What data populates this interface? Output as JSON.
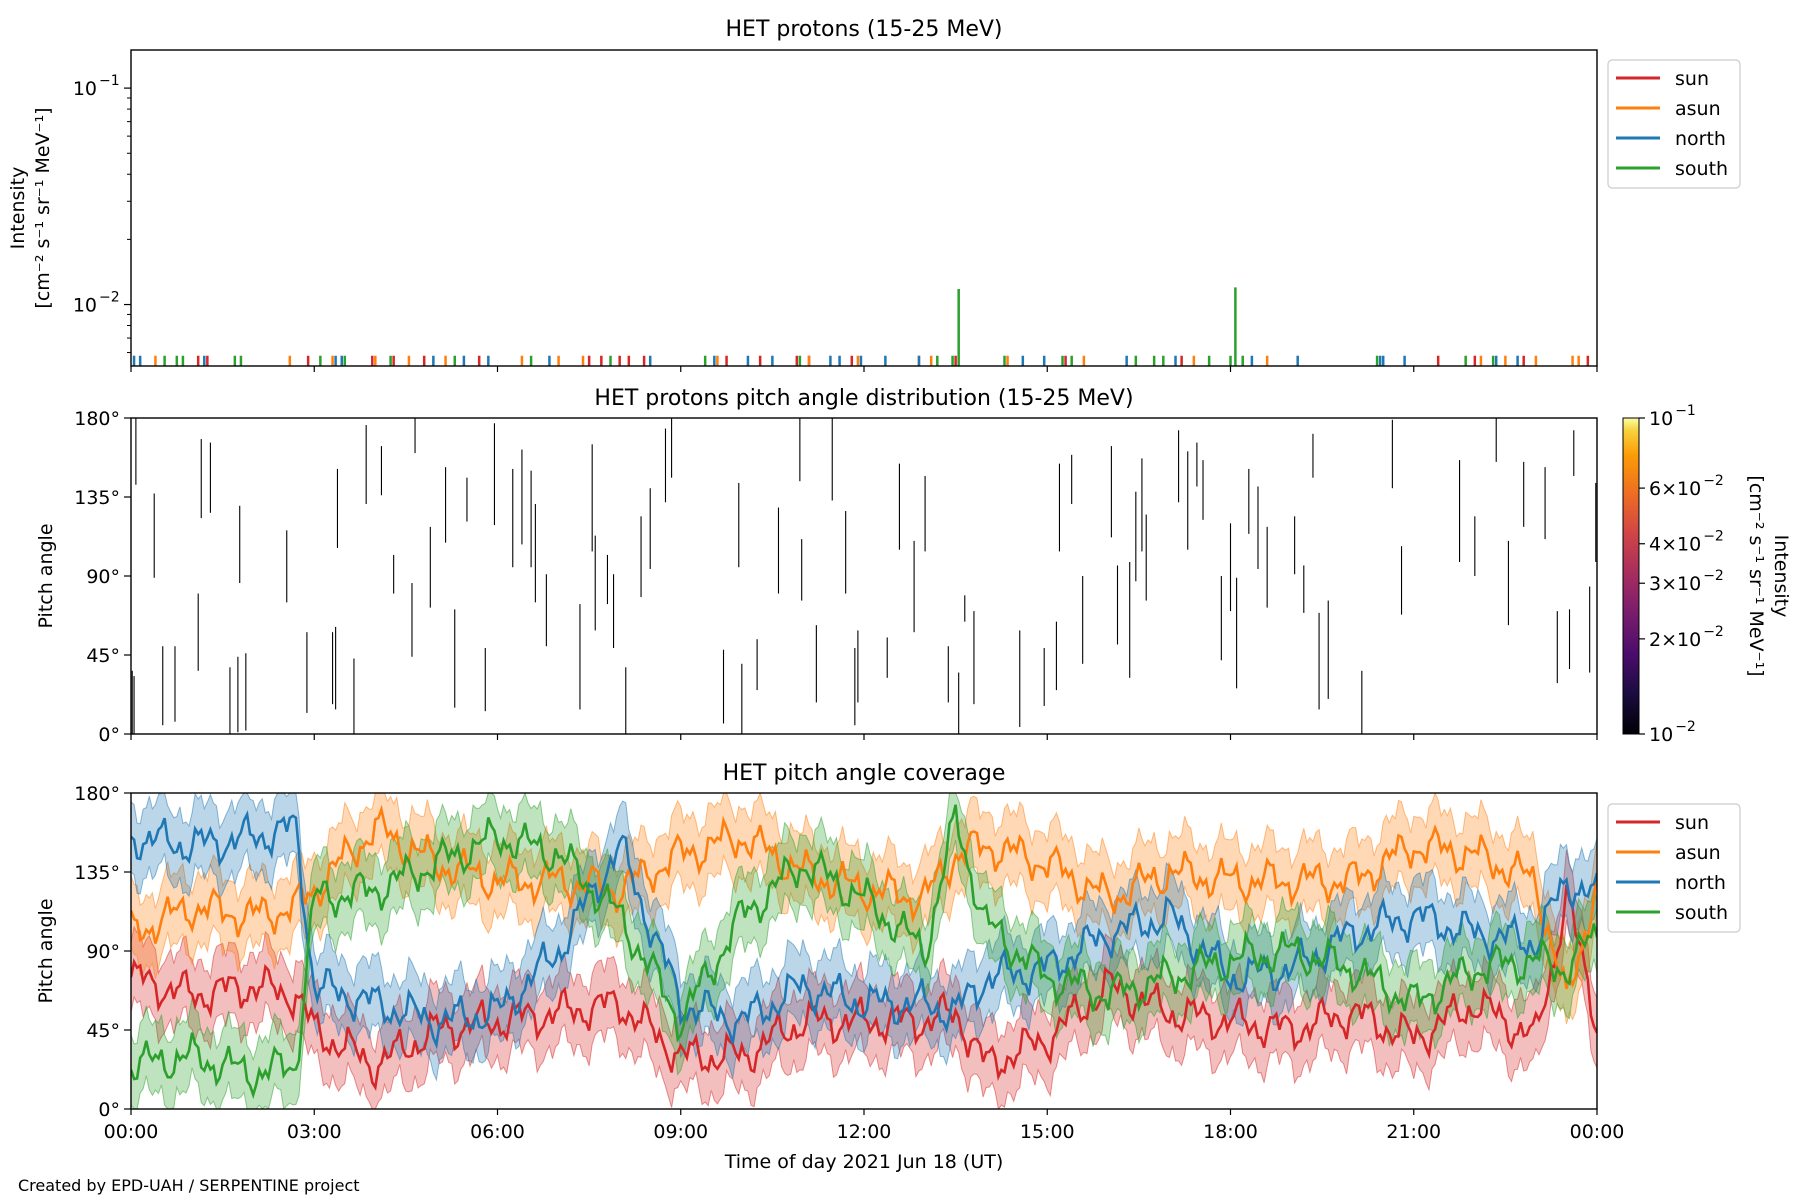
{
  "figure": {
    "credit": "Created by EPD-UAH / SERPENTINE project",
    "xlabel": "Time of day 2021 Jun 18 (UT)",
    "x_ticks": [
      "00:00",
      "03:00",
      "06:00",
      "09:00",
      "12:00",
      "15:00",
      "18:00",
      "21:00",
      "00:00"
    ],
    "x_range_hours": [
      0,
      24
    ]
  },
  "colors": {
    "sun": "#d62728",
    "asun": "#ff7f0e",
    "north": "#1f77b4",
    "south": "#2ca02c"
  },
  "chart_data": [
    {
      "type": "line",
      "title": "HET protons (15-25 MeV)",
      "ylabel_line1": "Intensity",
      "ylabel_line2": "[cm⁻² s⁻¹ sr⁻¹ MeV⁻¹]",
      "yscale": "log",
      "ylim": [
        0.0052,
        0.15
      ],
      "y_ticks": [
        {
          "value": 0.1,
          "base": "10",
          "exp": "−1"
        },
        {
          "value": 0.01,
          "base": "10",
          "exp": "−2"
        }
      ],
      "legend": [
        "sun",
        "asun",
        "north",
        "south"
      ],
      "legend_position": "upper right outside",
      "baseline": 0.0052,
      "series": [
        {
          "name": "sun",
          "spike_value": 0.0058,
          "times": [
            1.1,
            1.25,
            2.9,
            3.95,
            4.3,
            4.8,
            5.7,
            7.5,
            7.7,
            8.0,
            8.15,
            8.4,
            9.75,
            10.3,
            10.9,
            11.1,
            11.8,
            13.5,
            15.3,
            17.2,
            21.4,
            22.0,
            22.8,
            23.85
          ]
        },
        {
          "name": "asun",
          "spike_value": 0.0058,
          "times": [
            0.4,
            2.6,
            3.3,
            4.0,
            4.55,
            5.15,
            6.4,
            7.0,
            7.4,
            9.6,
            11.1,
            11.9,
            12.9,
            13.1,
            14.35,
            15.6,
            17.4,
            18.6,
            22.1,
            22.5,
            23.0,
            23.6,
            23.7
          ]
        },
        {
          "name": "north",
          "spike_value": 0.0058,
          "times": [
            0.05,
            0.15,
            1.2,
            3.35,
            3.45,
            4.95,
            5.45,
            5.85,
            6.85,
            8.5,
            9.55,
            10.1,
            10.5,
            11.45,
            11.6,
            11.95,
            12.35,
            12.9,
            14.6,
            14.95,
            16.3,
            17.1,
            18.35,
            19.1,
            20.45,
            20.5,
            20.85,
            22.35,
            22.7
          ]
        },
        {
          "name": "south",
          "spike_value": 0.0058,
          "times": [
            0.55,
            0.75,
            0.85,
            1.7,
            1.8,
            3.1,
            3.5,
            4.25,
            5.3,
            6.55,
            7.85,
            9.4,
            10.95,
            13.2,
            13.45,
            14.3,
            15.25,
            15.4,
            16.45,
            16.75,
            16.9,
            17.65,
            18.0,
            18.2,
            20.4,
            21.85,
            22.3
          ]
        }
      ],
      "peaks": [
        {
          "series": "south",
          "time": 13.55,
          "value": 0.0118
        },
        {
          "series": "south",
          "time": 18.08,
          "value": 0.012
        }
      ]
    },
    {
      "type": "heatmap",
      "title": "HET protons pitch angle distribution (15-25 MeV)",
      "ylabel": "Pitch angle",
      "ylim": [
        0,
        180
      ],
      "y_ticks": [
        "0°",
        "45°",
        "90°",
        "135°",
        "180°"
      ],
      "y_tick_values": [
        0,
        45,
        90,
        135,
        180
      ],
      "mark_color": "#000000",
      "colorbar": {
        "label_line1": "Intensity",
        "label_line2": "[cm⁻² s⁻¹ sr⁻¹ MeV⁻¹]",
        "scale": "log",
        "range": [
          0.01,
          0.1
        ],
        "cmap": "inferno",
        "ticks": [
          {
            "value": 0.1,
            "mant": "",
            "exp": "−1"
          },
          {
            "value": 0.06,
            "mant": "6",
            "exp": "−2"
          },
          {
            "value": 0.04,
            "mant": "4",
            "exp": "−2"
          },
          {
            "value": 0.03,
            "mant": "3",
            "exp": "−2"
          },
          {
            "value": 0.02,
            "mant": "2",
            "exp": "−2"
          },
          {
            "value": 0.01,
            "mant": "",
            "exp": "−2"
          }
        ]
      },
      "segments": [
        [
          0.02,
          0,
          36
        ],
        [
          0.05,
          0,
          33
        ],
        [
          0.08,
          142,
          180
        ],
        [
          0.38,
          89,
          137
        ],
        [
          0.52,
          5,
          50
        ],
        [
          0.72,
          7,
          50
        ],
        [
          1.1,
          36,
          80
        ],
        [
          1.15,
          123,
          168
        ],
        [
          1.3,
          126,
          166
        ],
        [
          1.62,
          0,
          38
        ],
        [
          1.75,
          1,
          44
        ],
        [
          1.78,
          86,
          130
        ],
        [
          1.88,
          2,
          46
        ],
        [
          2.55,
          75,
          116
        ],
        [
          2.88,
          12,
          58
        ],
        [
          3.3,
          17,
          58
        ],
        [
          3.35,
          14,
          61
        ],
        [
          3.38,
          106,
          151
        ],
        [
          3.65,
          0,
          43
        ],
        [
          3.85,
          131,
          176
        ],
        [
          4.1,
          136,
          164
        ],
        [
          4.3,
          80,
          102
        ],
        [
          4.6,
          44,
          86
        ],
        [
          4.65,
          160,
          180
        ],
        [
          4.9,
          72,
          118
        ],
        [
          5.15,
          109,
          152
        ],
        [
          5.3,
          15,
          71
        ],
        [
          5.5,
          121,
          146
        ],
        [
          5.8,
          13,
          49
        ],
        [
          5.95,
          119,
          177
        ],
        [
          6.25,
          95,
          151
        ],
        [
          6.4,
          108,
          162
        ],
        [
          6.55,
          95,
          150
        ],
        [
          6.62,
          75,
          131
        ],
        [
          6.8,
          50,
          91
        ],
        [
          7.35,
          14,
          74
        ],
        [
          7.55,
          104,
          165
        ],
        [
          7.6,
          59,
          113
        ],
        [
          7.8,
          74,
          102
        ],
        [
          7.9,
          49,
          91
        ],
        [
          8.1,
          0,
          38
        ],
        [
          8.35,
          78,
          124
        ],
        [
          8.5,
          94,
          140
        ],
        [
          8.75,
          132,
          174
        ],
        [
          8.85,
          146,
          180
        ],
        [
          9.7,
          6,
          48
        ],
        [
          9.95,
          95,
          143
        ],
        [
          10.0,
          0,
          40
        ],
        [
          10.25,
          25,
          54
        ],
        [
          10.6,
          80,
          129
        ],
        [
          10.95,
          144,
          180
        ],
        [
          10.98,
          76,
          111
        ],
        [
          11.22,
          18,
          62
        ],
        [
          11.48,
          133,
          180
        ],
        [
          11.7,
          80,
          127
        ],
        [
          11.85,
          5,
          49
        ],
        [
          11.9,
          18,
          59
        ],
        [
          12.38,
          32,
          55
        ],
        [
          12.58,
          105,
          154
        ],
        [
          12.82,
          58,
          110
        ],
        [
          13.0,
          104,
          147
        ],
        [
          13.38,
          18,
          50
        ],
        [
          13.55,
          0,
          35
        ],
        [
          13.65,
          64,
          79
        ],
        [
          13.8,
          17,
          70
        ],
        [
          14.55,
          4,
          59
        ],
        [
          14.95,
          16,
          49
        ],
        [
          15.15,
          25,
          64
        ],
        [
          15.2,
          104,
          154
        ],
        [
          15.4,
          131,
          159
        ],
        [
          15.58,
          40,
          90
        ],
        [
          16.05,
          112,
          164
        ],
        [
          16.15,
          51,
          96
        ],
        [
          16.35,
          32,
          98
        ],
        [
          16.45,
          87,
          138
        ],
        [
          16.55,
          104,
          157
        ],
        [
          16.62,
          76,
          125
        ],
        [
          17.15,
          132,
          173
        ],
        [
          17.3,
          105,
          161
        ],
        [
          17.45,
          141,
          166
        ],
        [
          17.55,
          122,
          156
        ],
        [
          17.85,
          42,
          90
        ],
        [
          18.0,
          70,
          120
        ],
        [
          18.1,
          26,
          89
        ],
        [
          18.3,
          114,
          151
        ],
        [
          18.45,
          94,
          141
        ],
        [
          18.6,
          72,
          118
        ],
        [
          19.05,
          91,
          124
        ],
        [
          19.2,
          69,
          96
        ],
        [
          19.35,
          146,
          171
        ],
        [
          19.45,
          14,
          69
        ],
        [
          19.6,
          20,
          76
        ],
        [
          20.15,
          0,
          36
        ],
        [
          20.65,
          140,
          179
        ],
        [
          20.8,
          68,
          107
        ],
        [
          21.75,
          98,
          156
        ],
        [
          22.0,
          90,
          124
        ],
        [
          22.35,
          155,
          180
        ],
        [
          22.55,
          62,
          110
        ],
        [
          22.8,
          118,
          155
        ],
        [
          23.15,
          111,
          152
        ],
        [
          23.35,
          29,
          70
        ],
        [
          23.55,
          37,
          71
        ],
        [
          23.62,
          147,
          173
        ],
        [
          23.88,
          35,
          84
        ],
        [
          23.98,
          98,
          143
        ]
      ]
    },
    {
      "type": "area",
      "title": "HET pitch angle coverage",
      "ylabel": "Pitch angle",
      "ylim": [
        0,
        180
      ],
      "y_ticks": [
        "0°",
        "45°",
        "90°",
        "135°",
        "180°"
      ],
      "y_tick_values": [
        0,
        45,
        90,
        135,
        180
      ],
      "legend": [
        "sun",
        "asun",
        "north",
        "south"
      ],
      "legend_position": "upper right outside",
      "band_halfwidth_deg": 20,
      "series": [
        {
          "name": "sun",
          "x": [
            0,
            1,
            2,
            2.7,
            3,
            4,
            5,
            6,
            7,
            8,
            9,
            10,
            11,
            12,
            13,
            13.5,
            14,
            15,
            16,
            17,
            18,
            19,
            20,
            21,
            22,
            23,
            23.5,
            24
          ],
          "y": [
            75,
            65,
            70,
            65,
            45,
            25,
            45,
            50,
            55,
            60,
            30,
            30,
            50,
            50,
            50,
            55,
            25,
            40,
            70,
            55,
            50,
            45,
            55,
            40,
            60,
            40,
            120,
            50
          ]
        },
        {
          "name": "asun",
          "x": [
            0,
            1,
            2,
            2.7,
            3,
            4,
            5,
            6,
            7,
            8,
            9,
            10,
            11,
            12,
            13,
            13.5,
            14,
            15,
            16,
            17,
            18,
            19,
            20,
            21,
            22,
            23,
            23.5,
            24
          ],
          "y": [
            100,
            115,
            110,
            115,
            125,
            160,
            140,
            130,
            130,
            125,
            145,
            155,
            135,
            125,
            120,
            145,
            150,
            140,
            120,
            135,
            130,
            130,
            130,
            150,
            145,
            130,
            60,
            130
          ]
        },
        {
          "name": "north",
          "x": [
            0,
            1,
            2,
            2.7,
            3,
            4,
            5,
            6,
            7,
            8,
            9,
            10,
            11,
            12,
            13,
            13.5,
            14,
            15,
            16,
            17,
            18,
            19,
            20,
            21,
            22,
            23,
            23.5,
            24
          ],
          "y": [
            155,
            150,
            155,
            160,
            70,
            60,
            50,
            55,
            90,
            150,
            60,
            50,
            70,
            60,
            60,
            55,
            75,
            80,
            100,
            110,
            75,
            80,
            100,
            110,
            100,
            95,
            130,
            120
          ]
        },
        {
          "name": "south",
          "x": [
            0,
            1,
            2,
            2.7,
            3,
            4,
            5,
            6,
            7,
            8,
            9,
            10,
            11,
            12,
            13,
            13.5,
            14,
            15,
            16,
            17,
            18,
            19,
            20,
            21,
            22,
            23,
            23.5,
            24
          ],
          "y": [
            25,
            30,
            20,
            25,
            120,
            125,
            140,
            155,
            145,
            110,
            50,
            110,
            140,
            120,
            90,
            165,
            105,
            75,
            65,
            75,
            85,
            90,
            80,
            60,
            80,
            85,
            80,
            100
          ]
        }
      ]
    }
  ]
}
